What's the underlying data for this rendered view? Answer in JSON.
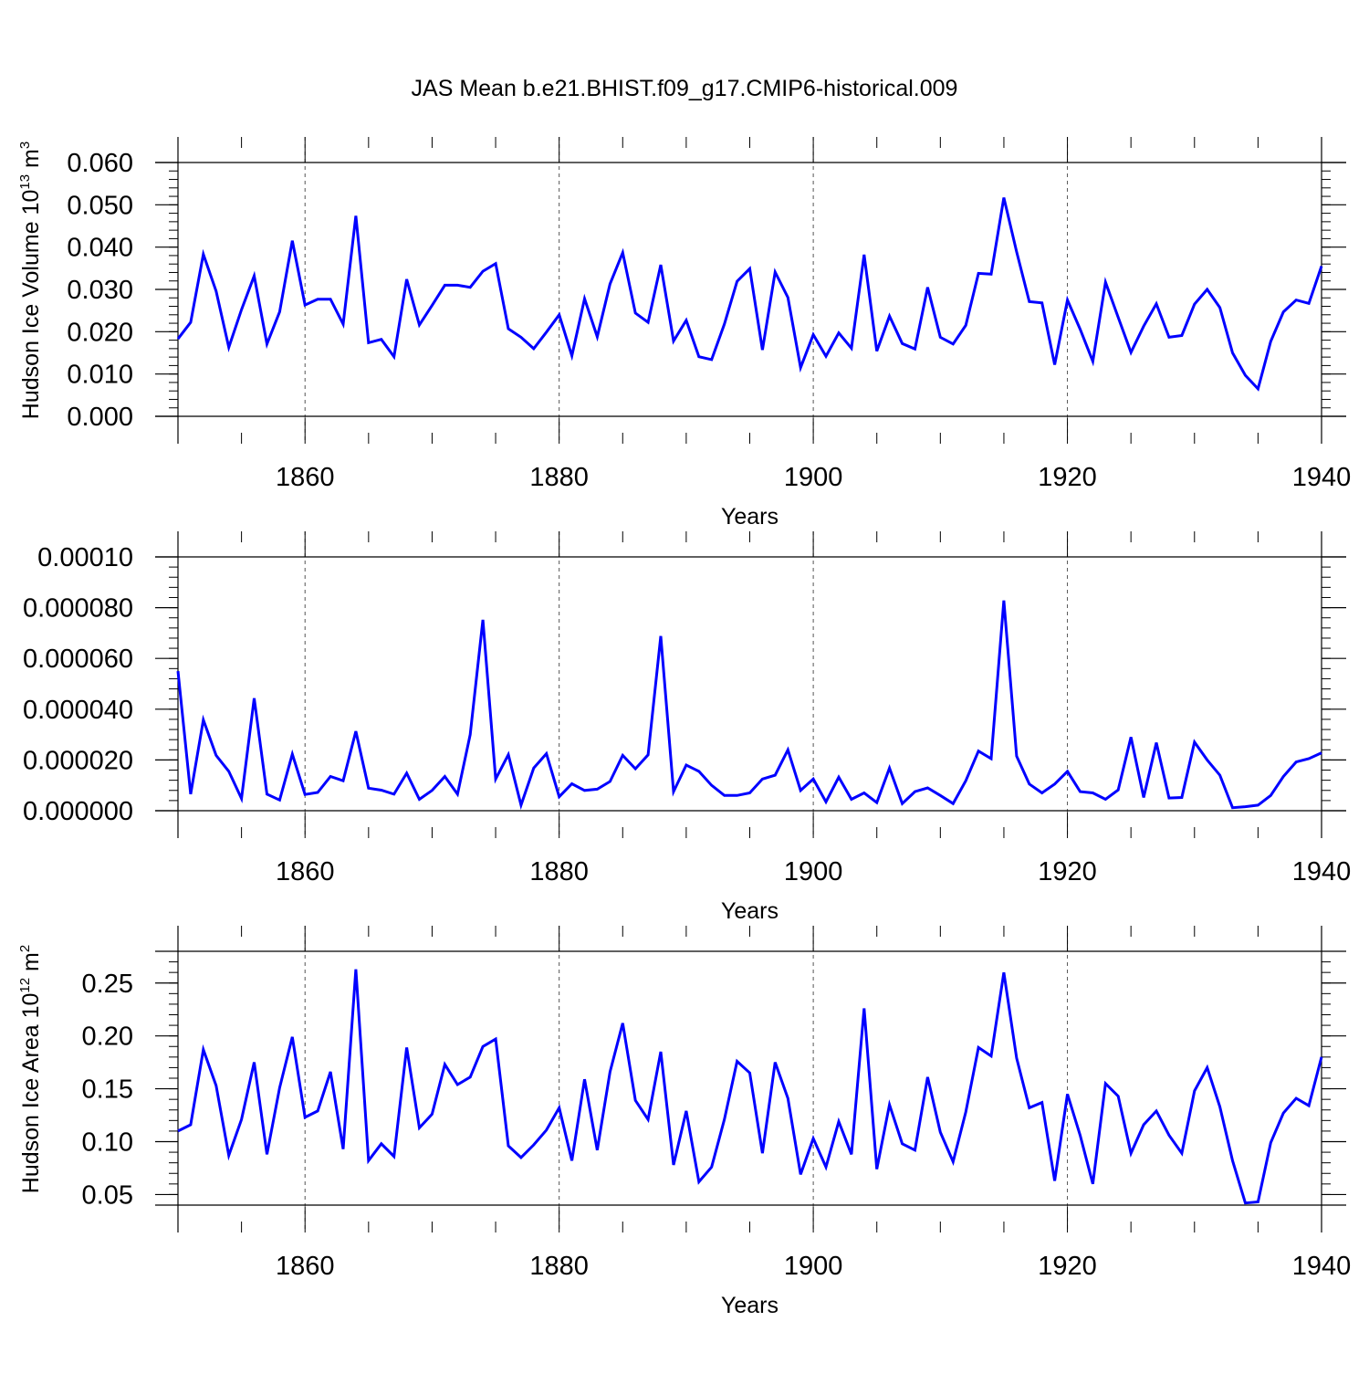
{
  "title": "JAS Mean b.e21.BHIST.f09_g17.CMIP6-historical.009",
  "series_color": "#0000ff",
  "chart_data": [
    {
      "type": "line",
      "id": "volume",
      "xlabel": "Years",
      "ylabel_main": "Hudson Ice Volume 10",
      "ylabel_exp": "13",
      "ylabel_unit": " m",
      "ylabel_unit_exp": "3",
      "xlim": [
        1850,
        1940
      ],
      "ylim": [
        0,
        0.06
      ],
      "xticks": [
        1860,
        1880,
        1900,
        1920,
        1940
      ],
      "xtick_labels": [
        "1860",
        "1880",
        "1900",
        "1920",
        "1940"
      ],
      "yticks": [
        0,
        0.01,
        0.02,
        0.03,
        0.04,
        0.05,
        0.06
      ],
      "ytick_labels": [
        "0.000",
        "0.010",
        "0.020",
        "0.030",
        "0.040",
        "0.050",
        "0.060"
      ],
      "ytick_minor_step": 0.002,
      "x_start": 1850,
      "values": [
        0.0183,
        0.0222,
        0.0383,
        0.0296,
        0.0163,
        0.0252,
        0.0332,
        0.0171,
        0.0247,
        0.0415,
        0.0263,
        0.0277,
        0.0277,
        0.0218,
        0.0474,
        0.0174,
        0.0182,
        0.0141,
        0.0324,
        0.0216,
        0.0262,
        0.031,
        0.031,
        0.0305,
        0.0343,
        0.0361,
        0.0207,
        0.0187,
        0.016,
        0.0199,
        0.024,
        0.0143,
        0.0278,
        0.0188,
        0.0313,
        0.0387,
        0.0244,
        0.0222,
        0.0358,
        0.0178,
        0.0227,
        0.0141,
        0.0134,
        0.0218,
        0.0319,
        0.0349,
        0.0157,
        0.0341,
        0.0281,
        0.0115,
        0.0193,
        0.0142,
        0.0197,
        0.0161,
        0.0382,
        0.0154,
        0.0237,
        0.0172,
        0.0159,
        0.0305,
        0.0187,
        0.0171,
        0.0215,
        0.0338,
        0.0336,
        0.0517,
        0.0389,
        0.0271,
        0.0268,
        0.0122,
        0.0275,
        0.0206,
        0.013,
        0.0317,
        0.0234,
        0.0151,
        0.0213,
        0.0266,
        0.0187,
        0.0191,
        0.0265,
        0.03,
        0.0257,
        0.015,
        0.0097,
        0.0065,
        0.0177,
        0.0247,
        0.0275,
        0.0267,
        0.0355
      ]
    },
    {
      "type": "line",
      "id": "middle",
      "xlabel": "Years",
      "xlim": [
        1850,
        1940
      ],
      "ylim": [
        0,
        0.0001
      ],
      "xticks": [
        1860,
        1880,
        1900,
        1920,
        1940
      ],
      "xtick_labels": [
        "1860",
        "1880",
        "1900",
        "1920",
        "1940"
      ],
      "yticks": [
        0,
        2e-05,
        4e-05,
        6e-05,
        8e-05,
        0.0001
      ],
      "ytick_labels": [
        "0.000000",
        "0.000020",
        "0.000040",
        "0.000060",
        "0.000080",
        "0.00010"
      ],
      "ytick_minor_step": 4e-06,
      "x_start": 1850,
      "values": [
        5.5e-05,
        6.5e-06,
        3.58e-05,
        2.18e-05,
        1.55e-05,
        4.8e-06,
        4.43e-05,
        6.5e-06,
        4.2e-06,
        2.23e-05,
        6.4e-06,
        7.2e-06,
        1.35e-05,
        1.18e-05,
        3.13e-05,
        8.9e-06,
        8.1e-06,
        6.5e-06,
        1.48e-05,
        4.5e-06,
        8e-06,
        1.35e-05,
        6.5e-06,
        3e-05,
        7.52e-05,
        1.25e-05,
        2.21e-05,
        2.2e-06,
        1.68e-05,
        2.25e-05,
        5.5e-06,
        1.06e-05,
        8e-06,
        8.5e-06,
        1.15e-05,
        2.18e-05,
        1.65e-05,
        2.2e-05,
        6.88e-05,
        7.5e-06,
        1.8e-05,
        1.55e-05,
        1e-05,
        6e-06,
        6e-06,
        7e-06,
        1.25e-05,
        1.4e-05,
        2.4e-05,
        8e-06,
        1.25e-05,
        3.5e-06,
        1.32e-05,
        4.5e-06,
        7e-06,
        3.2e-06,
        1.68e-05,
        2.8e-06,
        7.5e-06,
        9e-06,
        6e-06,
        2.8e-06,
        1.18e-05,
        2.35e-05,
        2.05e-05,
        8.28e-05,
        2.15e-05,
        1.05e-05,
        7e-06,
        1.05e-05,
        1.55e-05,
        7.5e-06,
        7e-06,
        4.5e-06,
        8.2e-06,
        2.9e-05,
        5.2e-06,
        2.68e-05,
        5e-06,
        5.2e-06,
        2.7e-05,
        2e-05,
        1.4e-05,
        1.2e-06,
        1.6e-06,
        2.2e-06,
        6e-06,
        1.35e-05,
        1.92e-05,
        2.05e-05,
        2.28e-05
      ]
    },
    {
      "type": "line",
      "id": "area",
      "xlabel": "Years",
      "ylabel_main": "Hudson Ice Area 10",
      "ylabel_exp": "12",
      "ylabel_unit": " m",
      "ylabel_unit_exp": "2",
      "xlim": [
        1850,
        1940
      ],
      "ylim": [
        0.04,
        0.28
      ],
      "xticks": [
        1860,
        1880,
        1900,
        1920,
        1940
      ],
      "xtick_labels": [
        "1860",
        "1880",
        "1900",
        "1920",
        "1940"
      ],
      "yticks": [
        0.05,
        0.1,
        0.15,
        0.2,
        0.25
      ],
      "ytick_labels": [
        "0.05",
        "0.10",
        "0.15",
        "0.20",
        "0.25"
      ],
      "ytick_minor_step": 0.01,
      "x_start": 1850,
      "values": [
        0.11,
        0.116,
        0.187,
        0.153,
        0.087,
        0.121,
        0.175,
        0.088,
        0.151,
        0.199,
        0.123,
        0.129,
        0.166,
        0.093,
        0.263,
        0.082,
        0.098,
        0.086,
        0.189,
        0.113,
        0.126,
        0.173,
        0.154,
        0.161,
        0.19,
        0.197,
        0.096,
        0.085,
        0.097,
        0.111,
        0.132,
        0.082,
        0.159,
        0.092,
        0.166,
        0.212,
        0.139,
        0.121,
        0.185,
        0.078,
        0.129,
        0.062,
        0.076,
        0.121,
        0.176,
        0.165,
        0.089,
        0.175,
        0.141,
        0.069,
        0.103,
        0.076,
        0.119,
        0.088,
        0.226,
        0.074,
        0.135,
        0.098,
        0.092,
        0.161,
        0.109,
        0.081,
        0.128,
        0.189,
        0.181,
        0.26,
        0.179,
        0.132,
        0.137,
        0.063,
        0.145,
        0.106,
        0.06,
        0.155,
        0.143,
        0.089,
        0.116,
        0.129,
        0.106,
        0.089,
        0.148,
        0.17,
        0.133,
        0.082,
        0.042,
        0.043,
        0.099,
        0.127,
        0.141,
        0.134,
        0.18
      ]
    }
  ]
}
